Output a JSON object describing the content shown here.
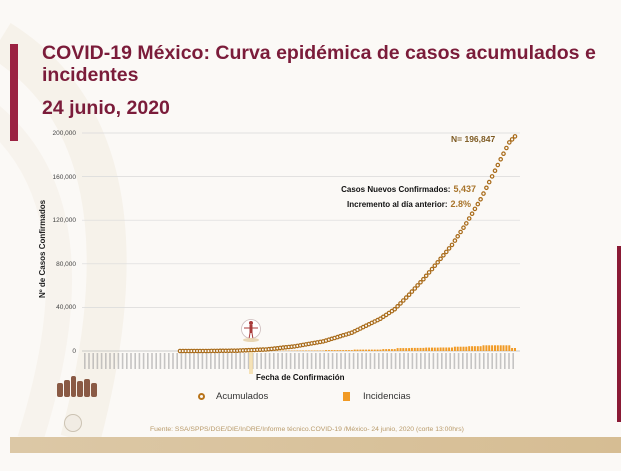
{
  "slide": {
    "title": "COVID-19 México: Curva epidémica de casos acumulados e incidentes",
    "date": "24 junio, 2020",
    "source": "Fuente: SSA/SPPS/DGE/DIE/InDRE/Informe técnico.COVID-19 /México- 24 junio, 2020 (corte 13:00hrs)",
    "colors": {
      "title": "#7b1c3a",
      "accent_bar": "#9b2242",
      "accumulated": "#b8741a",
      "incidence": "#f19a24",
      "band": "#d6bd93"
    }
  },
  "annotations": {
    "total_label": "N= 196,847",
    "new_cases_label": "Casos Nuevos Confirmados:",
    "new_cases_value": "5,437",
    "increment_label": "Incremento al día anterior:",
    "increment_value": "2.8%"
  },
  "chart_data": {
    "type": "line",
    "title": "COVID-19 México: Curva epidémica de casos acumulados e incidentes",
    "xlabel": "Fecha de Confirmación",
    "ylabel": "Nº de Casos Confirmados",
    "ylim": [
      0,
      200000
    ],
    "yticks": [
      "0",
      "40,000",
      "80,000",
      "120,000",
      "160,000",
      "200,000"
    ],
    "grid": true,
    "legend_position": "bottom",
    "legend": [
      "Acumulados",
      "Incidencias"
    ],
    "x_range": "2020-01 to 2020-06-24 (daily)",
    "series": [
      {
        "name": "Acumulados",
        "type": "line-markers",
        "x_days_from_feb28": [
          0,
          10,
          20,
          30,
          40,
          50,
          60,
          70,
          75,
          80,
          85,
          90,
          95,
          100,
          105,
          110,
          115,
          117
        ],
        "values": [
          1,
          26,
          316,
          1378,
          4219,
          8772,
          16752,
          29616,
          38324,
          51633,
          65856,
          81400,
          97326,
          117103,
          139196,
          165455,
          191410,
          196847
        ]
      },
      {
        "name": "Incidencias",
        "type": "bar",
        "note": "daily new cases, peak at end",
        "last_value": 5437
      }
    ],
    "annotations": [
      "N= 196,847",
      "Casos Nuevos Confirmados: 5,437",
      "Incremento al día anterior: 2.8%"
    ]
  }
}
